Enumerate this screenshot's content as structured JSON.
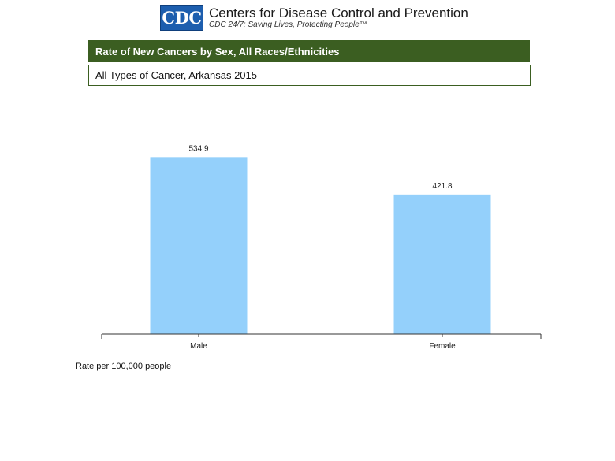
{
  "header": {
    "logo_text": "CDC",
    "org_name": "Centers for Disease Control and Prevention",
    "tagline": "CDC 24/7: Saving Lives, Protecting People™",
    "brand_color": "#1d5eae"
  },
  "chart_data": {
    "type": "bar",
    "title": "Rate of New Cancers by Sex, All Races/Ethnicities",
    "subtitle": "All Types of Cancer, Arkansas 2015",
    "categories": [
      "Male",
      "Female"
    ],
    "values": [
      534.9,
      421.8
    ],
    "value_labels": [
      "534.9",
      "421.8"
    ],
    "ylabel": "Rate per 100,000 people",
    "ylim": [
      0,
      600
    ],
    "grid": false,
    "bar_color": "#94d0fb",
    "title_bar_color": "#3b5e21"
  }
}
